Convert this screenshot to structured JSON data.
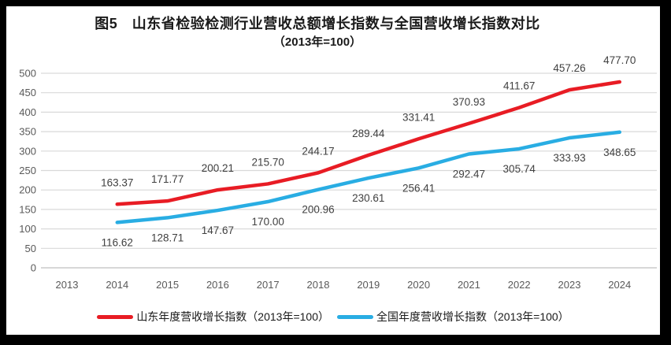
{
  "window": {
    "frame_color": "#000000",
    "paper_color": "#ffffff"
  },
  "chart_data": {
    "type": "line",
    "title": "图5　山东省检验检测行业营收总额增长指数与全国营收增长指数对比",
    "subtitle": "（2013年=100）",
    "categories": [
      "2013",
      "2014",
      "2015",
      "2016",
      "2017",
      "2018",
      "2019",
      "2020",
      "2021",
      "2022",
      "2023",
      "2024"
    ],
    "series": [
      {
        "name": "山东年度营收增长指数（2013年=100）",
        "color": "#e81c24",
        "start_index": 1,
        "label_position": "above",
        "values": [
          163.37,
          171.77,
          200.21,
          215.7,
          244.17,
          289.44,
          331.41,
          370.93,
          411.67,
          457.26,
          477.7
        ]
      },
      {
        "name": "全国年度营收增长指数（2013年=100）",
        "color": "#29ade3",
        "start_index": 1,
        "label_position": "below",
        "values": [
          116.62,
          128.71,
          147.67,
          170.0,
          200.96,
          230.61,
          256.41,
          292.47,
          305.74,
          333.93,
          348.65
        ]
      }
    ],
    "ylim": [
      0,
      500
    ],
    "ytick_step": 50,
    "yticks": [
      0,
      50,
      100,
      150,
      200,
      250,
      300,
      350,
      400,
      450,
      500
    ],
    "grid": true,
    "legend_position": "bottom",
    "colors": {
      "gridline": "#d9d9d9",
      "zero_line": "#bfbfbf",
      "axis_labels": "#595959",
      "data_labels": "#404040",
      "title": "#1a1a1a"
    }
  }
}
